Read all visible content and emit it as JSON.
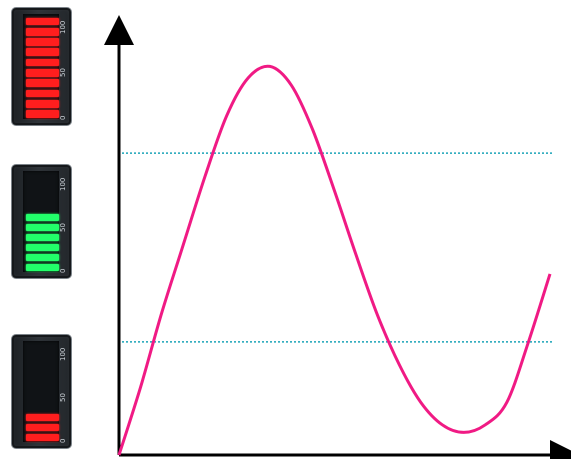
{
  "meters": [
    {
      "name": "meter-1",
      "level_percent": 100,
      "color": "#ff1e1e",
      "scale_labels": [
        "100",
        "50",
        "0"
      ]
    },
    {
      "name": "meter-2",
      "level_percent": 60,
      "color": "#22ff6a",
      "scale_labels": [
        "100",
        "50",
        "0"
      ]
    },
    {
      "name": "meter-3",
      "level_percent": 30,
      "color": "#ff1e1e",
      "scale_labels": [
        "100",
        "50",
        "0"
      ]
    }
  ],
  "chart_data": {
    "type": "line",
    "title": "",
    "xlabel": "",
    "ylabel": "",
    "curve_color": "#f01a84",
    "threshold_color": "#1aa3b8",
    "thresholds": [
      0.8,
      0.3
    ],
    "ylim": [
      0,
      1.1
    ],
    "xlim": [
      0,
      1
    ],
    "series": [
      {
        "x": [
          0,
          0.05,
          0.1,
          0.15,
          0.2,
          0.25,
          0.3,
          0.35,
          0.4,
          0.45,
          0.5,
          0.55,
          0.6,
          0.65,
          0.7,
          0.75,
          0.8,
          0.85,
          0.9,
          0.95,
          1.0
        ],
        "values": [
          0.0,
          0.18,
          0.38,
          0.56,
          0.74,
          0.9,
          1.0,
          1.03,
          0.98,
          0.86,
          0.7,
          0.53,
          0.37,
          0.24,
          0.14,
          0.08,
          0.06,
          0.08,
          0.14,
          0.3,
          0.48
        ]
      }
    ]
  }
}
